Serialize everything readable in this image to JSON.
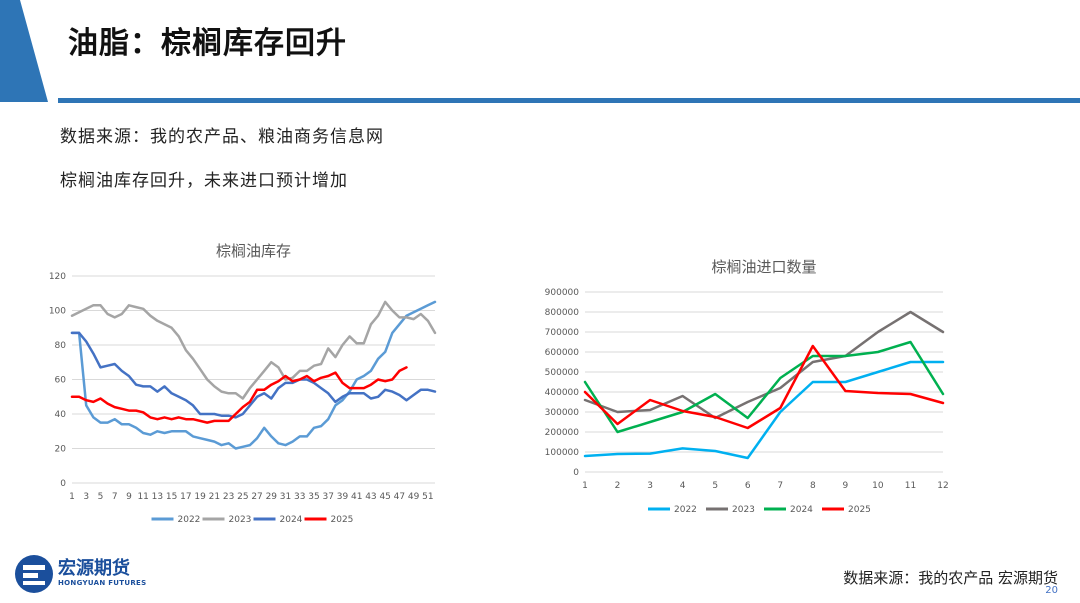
{
  "header": {
    "title": "油脂：棕榈库存回升"
  },
  "notes": [
    "数据来源：我的农产品、粮油商务信息网",
    "棕榈油库存回升，未来进口预计增加"
  ],
  "footer": {
    "source": "数据来源：我的农产品 宏源期货",
    "page_number": "20"
  },
  "logo": {
    "name_cn": "宏源期货",
    "name_en": "HONGYUAN FUTURES"
  },
  "chart_data": [
    {
      "type": "line",
      "title": "棕榈油库存",
      "x": [
        1,
        2,
        3,
        4,
        5,
        6,
        7,
        8,
        9,
        10,
        11,
        12,
        13,
        14,
        15,
        16,
        17,
        18,
        19,
        20,
        21,
        22,
        23,
        24,
        25,
        26,
        27,
        28,
        29,
        30,
        31,
        32,
        33,
        34,
        35,
        36,
        37,
        38,
        39,
        40,
        41,
        42,
        43,
        44,
        45,
        46,
        47,
        48,
        49,
        50,
        51,
        52
      ],
      "xticks": [
        1,
        3,
        5,
        7,
        9,
        11,
        13,
        15,
        17,
        19,
        21,
        23,
        25,
        27,
        29,
        31,
        33,
        35,
        37,
        39,
        41,
        43,
        45,
        47,
        49,
        51
      ],
      "ylim": [
        0,
        120
      ],
      "yticks": [
        0,
        20,
        40,
        60,
        80,
        100,
        120
      ],
      "legend_position": "bottom",
      "series": [
        {
          "name": "2022",
          "color": "#5b9bd5",
          "values": [
            87,
            87,
            45,
            38,
            35,
            35,
            37,
            34,
            34,
            32,
            29,
            28,
            30,
            29,
            30,
            30,
            30,
            27,
            26,
            25,
            24,
            22,
            23,
            20,
            21,
            22,
            26,
            32,
            27,
            23,
            22,
            24,
            27,
            27,
            32,
            33,
            37,
            45,
            48,
            53,
            60,
            62,
            65,
            72,
            76,
            87,
            92,
            97,
            99,
            101,
            103,
            105
          ]
        },
        {
          "name": "2023",
          "color": "#a5a5a5",
          "values": [
            97,
            99,
            101,
            103,
            103,
            98,
            96,
            98,
            103,
            102,
            101,
            97,
            94,
            92,
            90,
            85,
            77,
            72,
            66,
            60,
            56,
            53,
            52,
            52,
            49,
            55,
            60,
            65,
            70,
            67,
            60,
            61,
            65,
            65,
            68,
            69,
            78,
            73,
            80,
            85,
            81,
            81,
            92,
            97,
            105,
            100,
            96,
            96,
            95,
            98,
            94,
            87
          ]
        },
        {
          "name": "2024",
          "color": "#4472c4",
          "values": [
            87,
            87,
            82,
            75,
            67,
            68,
            69,
            65,
            62,
            57,
            56,
            56,
            53,
            56,
            52,
            50,
            48,
            45,
            40,
            40,
            40,
            39,
            39,
            38,
            40,
            45,
            50,
            52,
            49,
            55,
            58,
            58,
            60,
            60,
            58,
            55,
            52,
            47,
            50,
            52,
            52,
            52,
            49,
            50,
            54,
            53,
            51,
            48,
            51,
            54,
            54,
            53
          ]
        },
        {
          "name": "2025",
          "color": "#ff0000",
          "values": [
            50,
            50,
            48,
            47,
            49,
            46,
            44,
            43,
            42,
            42,
            41,
            38,
            37,
            38,
            37,
            38,
            37,
            37,
            36,
            35,
            36,
            36,
            36,
            40,
            44,
            47,
            54,
            54,
            57,
            59,
            62,
            59,
            60,
            62,
            59,
            61,
            62,
            64,
            58,
            55,
            55,
            55,
            57,
            60,
            59,
            60,
            65,
            67,
            null,
            null,
            null,
            null
          ]
        }
      ]
    },
    {
      "type": "line",
      "title": "棕榈油进口数量",
      "x": [
        1,
        2,
        3,
        4,
        5,
        6,
        7,
        8,
        9,
        10,
        11,
        12
      ],
      "ylim": [
        0,
        900000
      ],
      "yticks": [
        0,
        100000,
        200000,
        300000,
        400000,
        500000,
        600000,
        700000,
        800000,
        900000
      ],
      "legend_position": "bottom",
      "series": [
        {
          "name": "2022",
          "color": "#00b0f0",
          "values": [
            80000,
            90000,
            92000,
            118000,
            105000,
            70000,
            300000,
            450000,
            450000,
            500000,
            550000,
            550000
          ]
        },
        {
          "name": "2023",
          "color": "#767171",
          "values": [
            360000,
            300000,
            310000,
            380000,
            270000,
            350000,
            420000,
            550000,
            580000,
            700000,
            800000,
            700000
          ]
        },
        {
          "name": "2024",
          "color": "#00b050",
          "values": [
            450000,
            200000,
            250000,
            300000,
            390000,
            270000,
            470000,
            580000,
            580000,
            600000,
            650000,
            390000
          ]
        },
        {
          "name": "2025",
          "color": "#ff0000",
          "values": [
            400000,
            240000,
            360000,
            305000,
            275000,
            220000,
            320000,
            630000,
            405000,
            395000,
            390000,
            345000
          ]
        }
      ]
    }
  ]
}
